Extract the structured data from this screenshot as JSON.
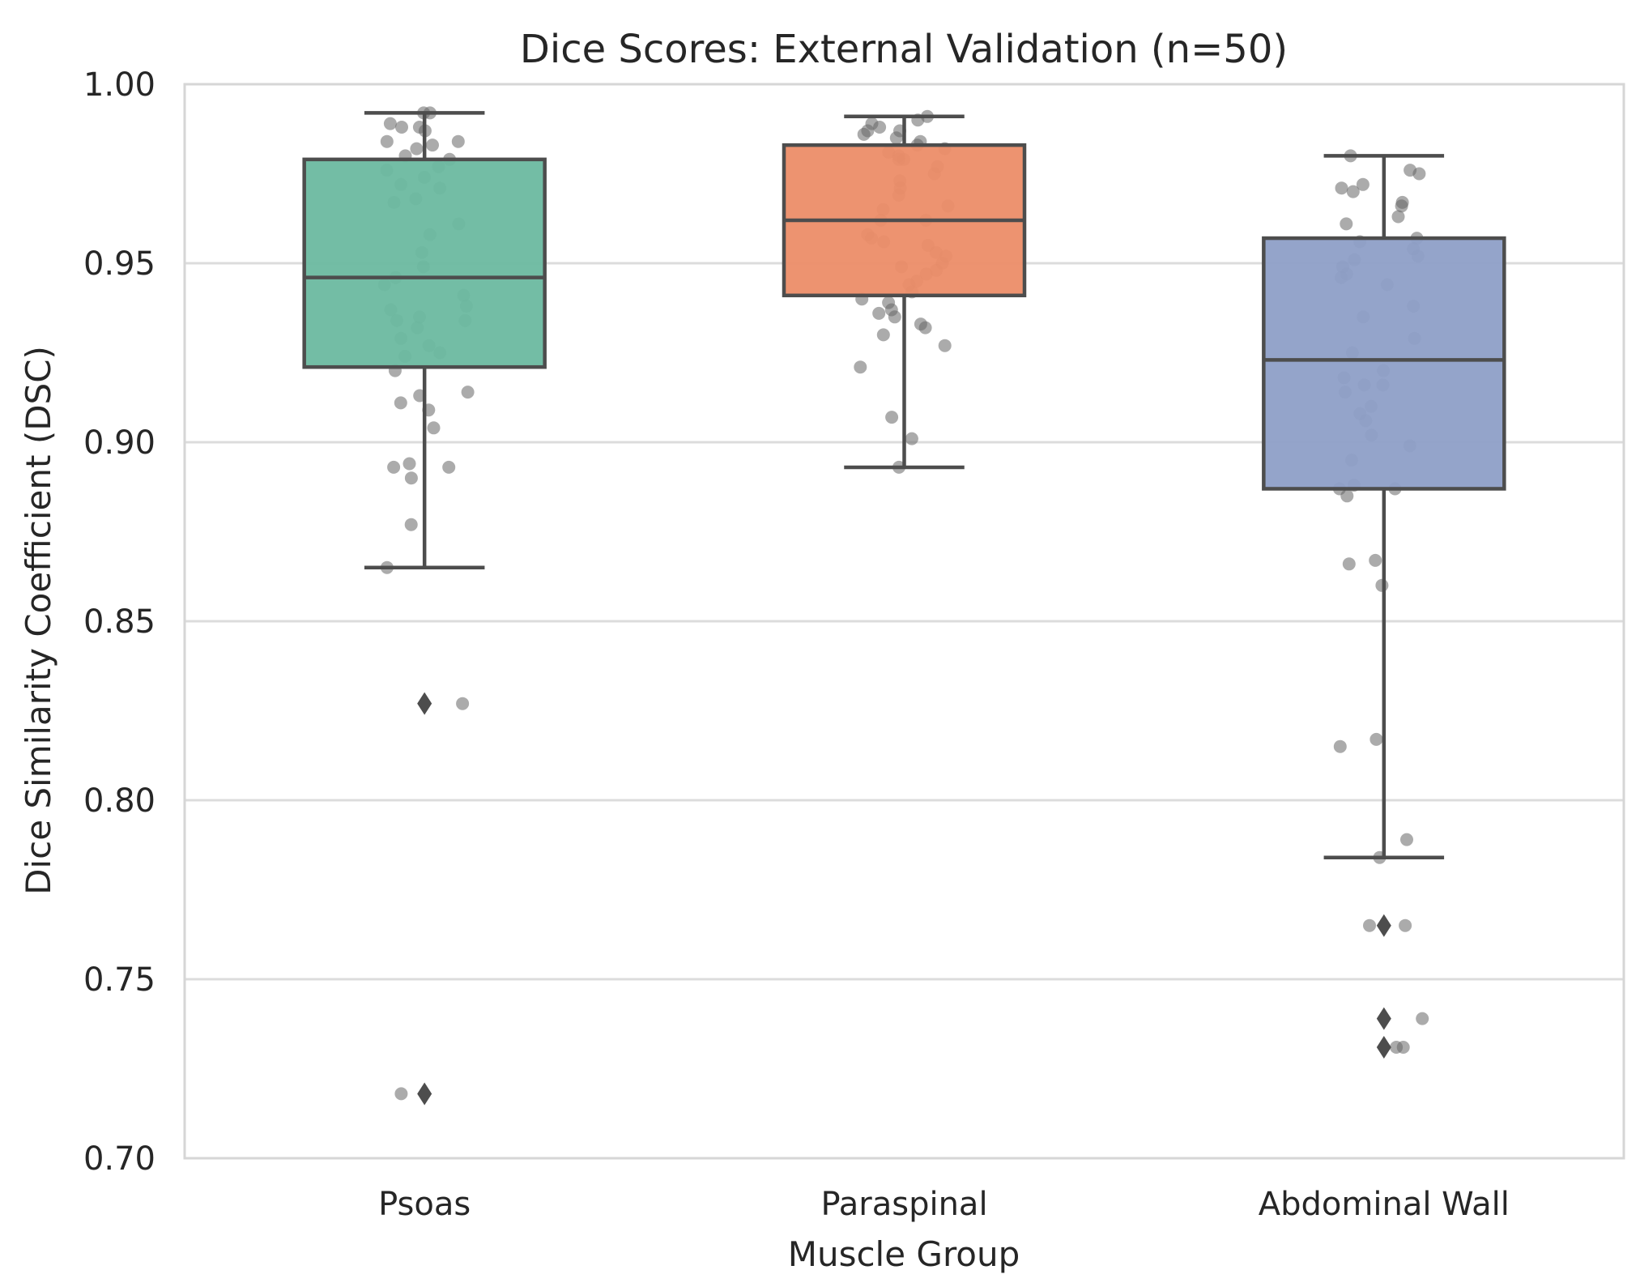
{
  "chart_data": {
    "type": "box",
    "title": "Dice Scores: External Validation (n=50)",
    "xlabel": "Muscle Group",
    "ylabel": "Dice Similarity Coefficient (DSC)",
    "ylim": [
      0.7,
      1.0
    ],
    "yticks": [
      "0.70",
      "0.75",
      "0.80",
      "0.85",
      "0.90",
      "0.95",
      "1.00"
    ],
    "ytick_values": [
      0.7,
      0.75,
      0.8,
      0.85,
      0.9,
      0.95,
      1.0
    ],
    "grid": true,
    "categories": [
      "Psoas",
      "Paraspinal",
      "Abdominal Wall"
    ],
    "boxes": [
      {
        "name": "Psoas",
        "color": "#6cb9a0",
        "whisker_low": 0.865,
        "q1": 0.921,
        "median": 0.946,
        "q3": 0.979,
        "whisker_high": 0.992,
        "outliers": [
          0.827,
          0.718
        ],
        "points": [
          0.992,
          0.992,
          0.989,
          0.988,
          0.988,
          0.987,
          0.984,
          0.984,
          0.983,
          0.982,
          0.98,
          0.979,
          0.977,
          0.976,
          0.974,
          0.972,
          0.971,
          0.967,
          0.958,
          0.949,
          0.946,
          0.944,
          0.941,
          0.938,
          0.937,
          0.935,
          0.934,
          0.934,
          0.932,
          0.927,
          0.925,
          0.924,
          0.92,
          0.914,
          0.913,
          0.911,
          0.909,
          0.894,
          0.893,
          0.893,
          0.89,
          0.877,
          0.865,
          0.827,
          0.718,
          0.961,
          0.953,
          0.929,
          0.904,
          0.968
        ]
      },
      {
        "name": "Paraspinal",
        "color": "#ec8d68",
        "whisker_low": 0.893,
        "q1": 0.941,
        "median": 0.962,
        "q3": 0.983,
        "whisker_high": 0.991,
        "outliers": [],
        "points": [
          0.991,
          0.99,
          0.989,
          0.988,
          0.987,
          0.987,
          0.986,
          0.985,
          0.984,
          0.983,
          0.982,
          0.981,
          0.98,
          0.979,
          0.979,
          0.975,
          0.973,
          0.969,
          0.965,
          0.962,
          0.962,
          0.957,
          0.956,
          0.955,
          0.953,
          0.952,
          0.95,
          0.948,
          0.947,
          0.945,
          0.944,
          0.94,
          0.939,
          0.937,
          0.936,
          0.935,
          0.933,
          0.932,
          0.93,
          0.927,
          0.921,
          0.907,
          0.901,
          0.893,
          0.958,
          0.966,
          0.971,
          0.977,
          0.942,
          0.949
        ]
      },
      {
        "name": "Abdominal Wall",
        "color": "#8e9fc7",
        "whisker_low": 0.784,
        "q1": 0.887,
        "median": 0.923,
        "q3": 0.957,
        "whisker_high": 0.98,
        "outliers": [
          0.765,
          0.739,
          0.731
        ],
        "points": [
          0.98,
          0.976,
          0.975,
          0.972,
          0.971,
          0.97,
          0.967,
          0.966,
          0.963,
          0.957,
          0.956,
          0.954,
          0.951,
          0.949,
          0.947,
          0.946,
          0.944,
          0.938,
          0.929,
          0.925,
          0.92,
          0.918,
          0.916,
          0.916,
          0.914,
          0.91,
          0.908,
          0.906,
          0.899,
          0.895,
          0.888,
          0.887,
          0.887,
          0.885,
          0.867,
          0.866,
          0.86,
          0.817,
          0.815,
          0.789,
          0.784,
          0.765,
          0.765,
          0.739,
          0.731,
          0.731,
          0.935,
          0.902,
          0.961,
          0.952
        ]
      }
    ]
  }
}
